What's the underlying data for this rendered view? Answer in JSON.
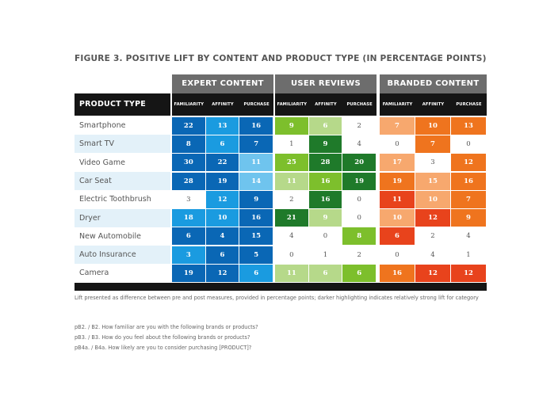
{
  "chart_data": {
    "type": "heatmap",
    "title": "FIGURE 3. POSITIVE LIFT BY CONTENT AND PRODUCT TYPE (IN PERCENTAGE POINTS)",
    "row_header": "PRODUCT TYPE",
    "groups": [
      {
        "name": "EXPERT CONTENT",
        "color_family": "blue",
        "columns": [
          "FAMILIARITY",
          "AFFINITY",
          "PURCHASE"
        ]
      },
      {
        "name": "USER REVIEWS",
        "color_family": "green",
        "columns": [
          "FAMILIARITY",
          "AFFINITY",
          "PURCHASE"
        ]
      },
      {
        "name": "BRANDED CONTENT",
        "color_family": "orange",
        "columns": [
          "FAMILIARITY",
          "AFFINITY",
          "PURCHASE"
        ]
      }
    ],
    "rows": [
      "Smartphone",
      "Smart TV",
      "Video Game",
      "Car Seat",
      "Electric Toothbrush",
      "Dryer",
      "New Automobile",
      "Auto Insurance",
      "Camera"
    ],
    "values": [
      [
        22,
        13,
        16,
        9,
        6,
        2,
        7,
        10,
        13
      ],
      [
        8,
        6,
        7,
        1,
        9,
        4,
        0,
        7,
        0
      ],
      [
        30,
        22,
        11,
        25,
        28,
        20,
        17,
        3,
        12
      ],
      [
        28,
        19,
        14,
        11,
        16,
        19,
        19,
        15,
        16
      ],
      [
        3,
        12,
        9,
        2,
        16,
        0,
        11,
        10,
        7
      ],
      [
        18,
        10,
        16,
        21,
        9,
        0,
        10,
        12,
        9
      ],
      [
        6,
        4,
        15,
        4,
        0,
        8,
        6,
        2,
        4
      ],
      [
        3,
        6,
        5,
        0,
        1,
        2,
        0,
        4,
        1
      ],
      [
        19,
        12,
        6,
        11,
        6,
        6,
        16,
        12,
        12
      ]
    ],
    "highlight_levels": [
      [
        3,
        2,
        3,
        2,
        1,
        0,
        1,
        2,
        2
      ],
      [
        3,
        2,
        3,
        0,
        3,
        0,
        0,
        2,
        0
      ],
      [
        3,
        3,
        1,
        2,
        3,
        3,
        1,
        0,
        2
      ],
      [
        3,
        3,
        1,
        1,
        2,
        3,
        2,
        1,
        2
      ],
      [
        0,
        2,
        3,
        0,
        3,
        0,
        3,
        1,
        2
      ],
      [
        2,
        2,
        3,
        3,
        1,
        0,
        1,
        3,
        2
      ],
      [
        3,
        3,
        3,
        0,
        0,
        2,
        3,
        0,
        0
      ],
      [
        2,
        3,
        3,
        0,
        0,
        0,
        0,
        0,
        0
      ],
      [
        3,
        3,
        2,
        1,
        1,
        2,
        2,
        3,
        3
      ]
    ],
    "palette": {
      "blue": [
        "#ffffff",
        "#6fc4ee",
        "#1a9be0",
        "#0a67b5"
      ],
      "green": [
        "#ffffff",
        "#b6d98a",
        "#7dbf2c",
        "#1f7a2a"
      ],
      "orange": [
        "#ffffff",
        "#f7a86e",
        "#ef741e",
        "#e8431c"
      ]
    },
    "level_text_color": [
      "#555555",
      "#ffffff",
      "#ffffff",
      "#ffffff"
    ]
  },
  "colors": {
    "group_header_bg": "#6d6d6d",
    "subheader_bg": "#151515",
    "alt_row_bg": "#e3f1f9"
  },
  "notes": {
    "caption": "Lift presented as difference between pre and post measures, provided in percentage points; darker highlighting indicates relatively strong lift for category",
    "questions": [
      "pB2. / B2. How familiar are you with the following brands or products?",
      "pB3. / B3. How do you feel about the following brands or products?",
      "pB4a. / B4a. How likely are you to consider purchasing [PRODUCT]?"
    ]
  }
}
